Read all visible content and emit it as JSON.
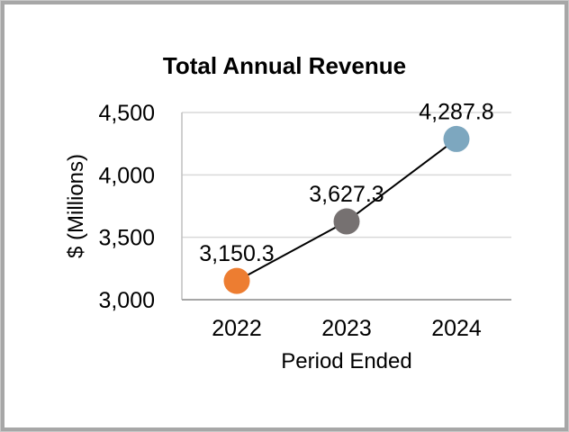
{
  "chart": {
    "title": "Total Annual Revenue",
    "x_axis_title": "Period Ended",
    "y_axis_title": "$ (Millions)"
  },
  "chart_data": {
    "type": "line",
    "title": "Total Annual Revenue",
    "xlabel": "Period Ended",
    "ylabel": "$ (Millions)",
    "categories": [
      "2022",
      "2023",
      "2024"
    ],
    "series": [
      {
        "name": "Total Annual Revenue",
        "values": [
          3150.3,
          3627.3,
          4287.8
        ],
        "point_labels": [
          "3,150.3",
          "3,627.3",
          "4,287.8"
        ]
      }
    ],
    "ylim": [
      3000,
      4500
    ],
    "ytick_interval": 500,
    "ytick_labels": [
      "3,000",
      "3,500",
      "4,000",
      "4,500"
    ],
    "grid": true,
    "legend": "none",
    "colors": {
      "line": "#000000",
      "markers": [
        "#ED7D31",
        "#767171",
        "#7DA7BF"
      ],
      "gridline": "#D9D9D9",
      "x_axis_line": "#A6A6A6",
      "y_axis_line": "#BFBFBF",
      "frame_outer": "#C9C9C9",
      "frame_inner": "#A7A7A7",
      "text": "#000000"
    }
  }
}
